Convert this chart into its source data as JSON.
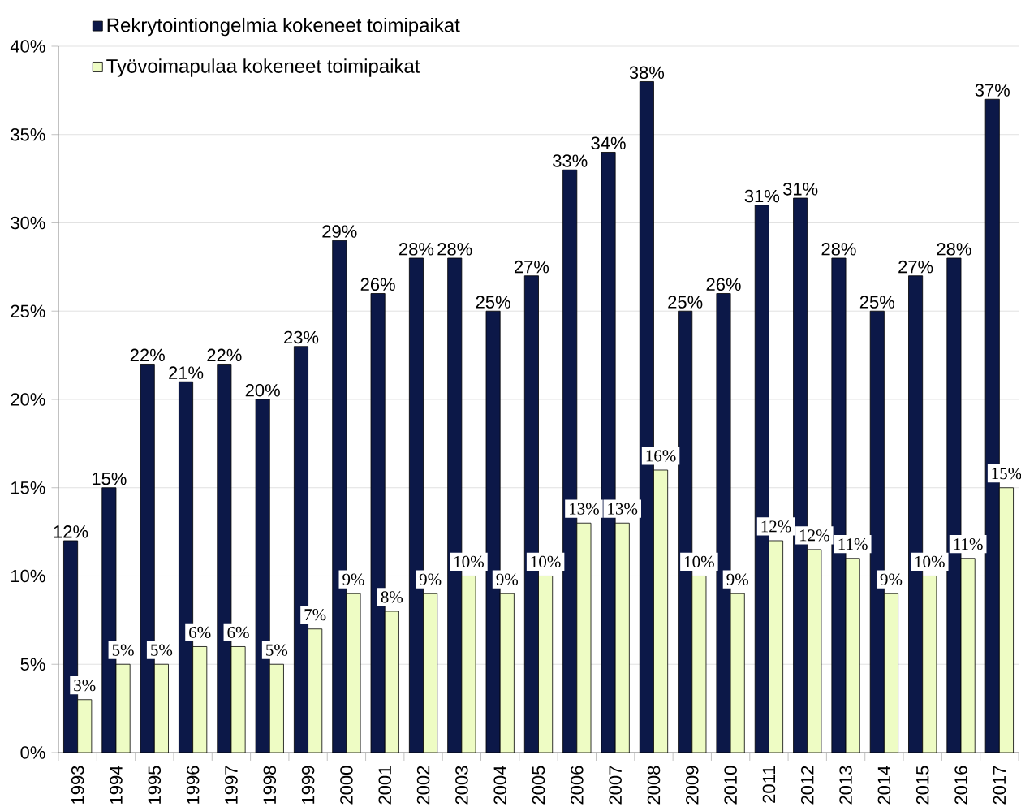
{
  "chart_data": {
    "type": "bar",
    "categories": [
      "1993",
      "1994",
      "1995",
      "1996",
      "1997",
      "1998",
      "1999",
      "2000",
      "2001",
      "2002",
      "2003",
      "2004",
      "2005",
      "2006",
      "2007",
      "2008",
      "2009",
      "2010",
      "2011",
      "2012",
      "2013",
      "2014",
      "2015",
      "2016",
      "2017"
    ],
    "series": [
      {
        "name": "Rekrytointiongelmia kokeneet toimipaikat",
        "color": "#0c1848",
        "values": [
          12,
          15,
          22,
          21,
          22,
          20,
          23,
          29,
          26,
          28,
          28,
          25,
          27,
          33,
          34,
          38,
          25,
          26,
          31,
          31.4,
          28,
          25,
          27,
          28,
          37
        ],
        "value_labels": [
          "12%",
          "15%",
          "22%",
          "21%",
          "22%",
          "20%",
          "23%",
          "29%",
          "26%",
          "28%",
          "28%",
          "25%",
          "27%",
          "33%",
          "34%",
          "38%",
          "25%",
          "26%",
          "31%",
          "31%",
          "28%",
          "25%",
          "27%",
          "28%",
          "37%"
        ]
      },
      {
        "name": "Työvoimapulaa kokeneet toimipaikat",
        "color": "#eefcc4",
        "values": [
          3,
          5,
          5,
          6,
          6,
          5,
          7,
          9,
          8,
          9,
          10,
          9,
          10,
          13,
          13,
          16,
          10,
          9,
          12,
          11.5,
          11,
          9,
          10,
          11,
          15
        ],
        "value_labels": [
          "3%",
          "5%",
          "5%",
          "6%",
          "6%",
          "5%",
          "7%",
          "9%",
          "8%",
          "9%",
          "10%",
          "9%",
          "10%",
          "13%",
          "13%",
          "16%",
          "10%",
          "9%",
          "12%",
          "12%",
          "11%",
          "9%",
          "10%",
          "11%",
          "15%"
        ]
      }
    ],
    "ylim": [
      0,
      40
    ],
    "yticks": [
      {
        "value": 0,
        "label": "0%"
      },
      {
        "value": 5,
        "label": "5%"
      },
      {
        "value": 10,
        "label": "10%"
      },
      {
        "value": 15,
        "label": "15%"
      },
      {
        "value": 20,
        "label": "20%"
      },
      {
        "value": 25,
        "label": "25%"
      },
      {
        "value": 30,
        "label": "30%"
      },
      {
        "value": 35,
        "label": "35%"
      },
      {
        "value": 40,
        "label": "40%"
      }
    ],
    "grid": "y",
    "legend": "top left"
  }
}
